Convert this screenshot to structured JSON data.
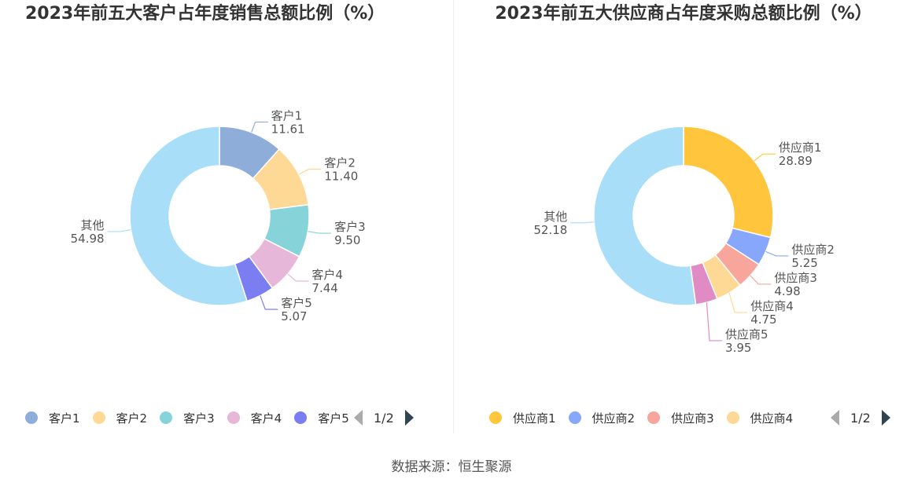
{
  "charts": [
    {
      "title": "2023年前五大客户占年度销售总额比例（%）",
      "legend_page": "1/2"
    },
    {
      "title": "2023年前五大供应商占年度采购总额比例（%）",
      "legend_page": "1/2"
    }
  ],
  "source": "数据来源：恒生聚源",
  "chart_data": [
    {
      "type": "pie",
      "variant": "donut",
      "title": "2023年前五大客户占年度销售总额比例（%）",
      "categories": [
        "客户1",
        "客户2",
        "客户3",
        "客户4",
        "客户5",
        "其他"
      ],
      "values": [
        11.61,
        11.4,
        9.5,
        7.44,
        5.07,
        54.98
      ],
      "value_labels": [
        "11.61",
        "11.40",
        "9.50",
        "7.44",
        "5.07",
        "54.98"
      ],
      "colors": [
        "#8eadd9",
        "#fed995",
        "#86d4d9",
        "#e7b7da",
        "#7a7ef0",
        "#a9def9"
      ],
      "legend": {
        "position": "bottom",
        "visible_items": [
          "客户1",
          "客户2",
          "客户3",
          "客户4",
          "客户5"
        ],
        "page": "1/2"
      }
    },
    {
      "type": "pie",
      "variant": "donut",
      "title": "2023年前五大供应商占年度采购总额比例（%）",
      "categories": [
        "供应商1",
        "供应商2",
        "供应商3",
        "供应商4",
        "供应商5",
        "其他"
      ],
      "values": [
        28.89,
        5.25,
        4.98,
        4.75,
        3.95,
        52.18
      ],
      "value_labels": [
        "28.89",
        "5.25",
        "4.98",
        "4.75",
        "3.95",
        "52.18"
      ],
      "colors": [
        "#ffc53d",
        "#86a7fb",
        "#f8a59b",
        "#fed995",
        "#e08bc3",
        "#a9def9"
      ],
      "legend": {
        "position": "bottom",
        "visible_items": [
          "供应商1",
          "供应商2",
          "供应商3",
          "供应商4"
        ],
        "page": "1/2"
      }
    }
  ]
}
